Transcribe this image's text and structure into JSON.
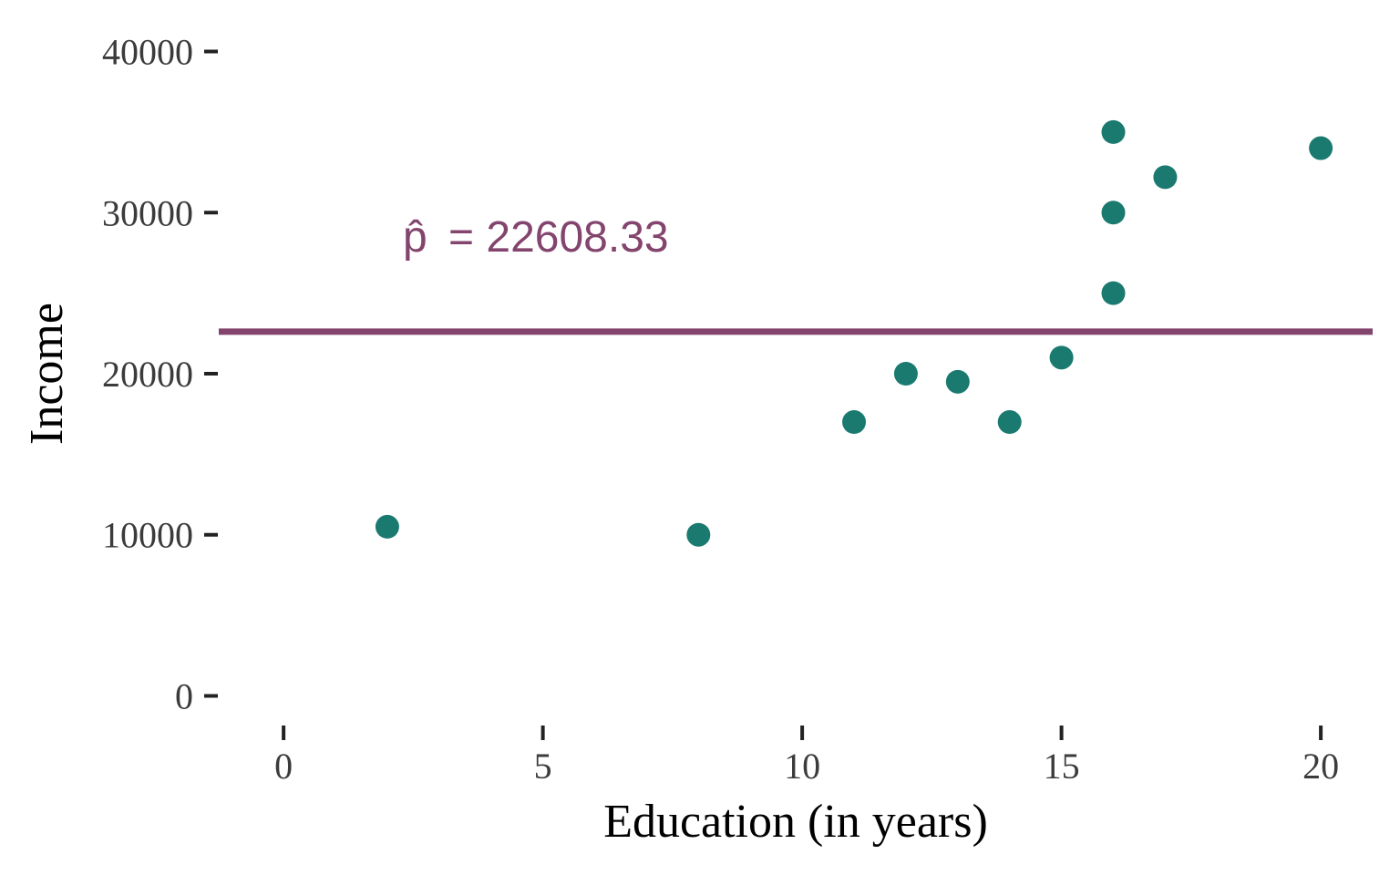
{
  "chart_data": {
    "type": "scatter",
    "xlabel": "Education (in years)",
    "ylabel": "Income",
    "xlim": [
      -1.25,
      21
    ],
    "ylim": [
      -1500,
      41500
    ],
    "x_ticks": [
      0,
      5,
      10,
      15,
      20
    ],
    "y_ticks": [
      0,
      10000,
      20000,
      30000,
      40000
    ],
    "x_tick_labels": [
      "0",
      "5",
      "10",
      "15",
      "20"
    ],
    "y_tick_labels": [
      "0",
      "10000",
      "20000",
      "30000",
      "40000"
    ],
    "grid": false,
    "legend": "none",
    "series": [
      {
        "points": [
          {
            "x": 2,
            "y": 10500
          },
          {
            "x": 8,
            "y": 10000
          },
          {
            "x": 11,
            "y": 17000
          },
          {
            "x": 12,
            "y": 20000
          },
          {
            "x": 13,
            "y": 19500
          },
          {
            "x": 14,
            "y": 17000
          },
          {
            "x": 15,
            "y": 21000
          },
          {
            "x": 16,
            "y": 25000
          },
          {
            "x": 16,
            "y": 30000
          },
          {
            "x": 16,
            "y": 35000
          },
          {
            "x": 17,
            "y": 32200
          },
          {
            "x": 20,
            "y": 34000
          }
        ],
        "color": "#1b7a70"
      }
    ],
    "reference_line": {
      "y": 22608.33,
      "color": "#83446e"
    },
    "annotation": {
      "symbol": "p̂",
      "text": "= 22608.33",
      "x": 2.3,
      "y": 28500,
      "color": "#83446e"
    }
  }
}
